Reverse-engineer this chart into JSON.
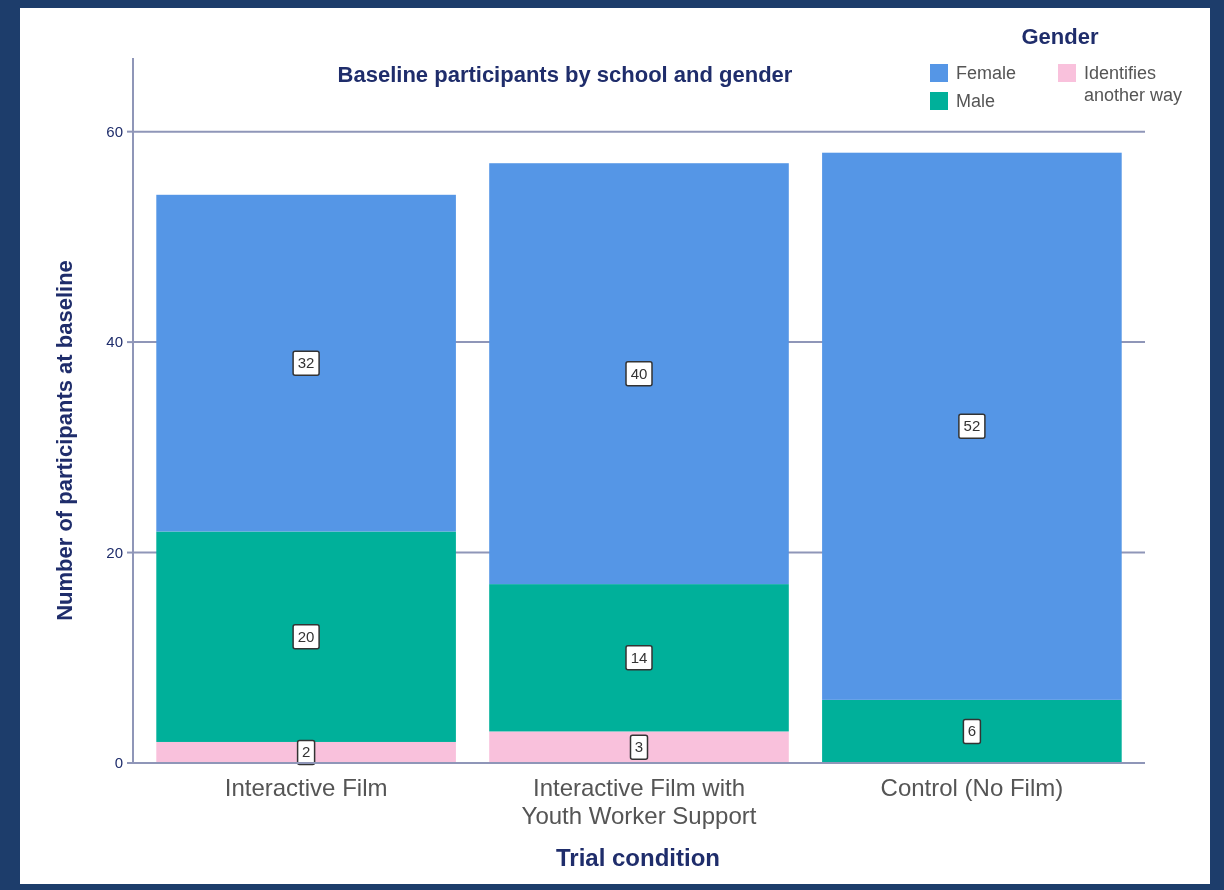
{
  "chart_data": {
    "type": "bar",
    "title": "Baseline participants by school and gender",
    "xlabel": "Trial condition",
    "ylabel": "Number of participants at baseline",
    "legend_title": "Gender",
    "categories": [
      "Interactive Film",
      "Interactive Film with Youth Worker Support",
      "Control (No Film)"
    ],
    "series": [
      {
        "name": "Identifies another way",
        "color": "#f9c1dc",
        "values": [
          2,
          3,
          null
        ]
      },
      {
        "name": "Male",
        "color": "#00b09a",
        "values": [
          20,
          14,
          6
        ]
      },
      {
        "name": "Female",
        "color": "#5596e6",
        "values": [
          32,
          40,
          52
        ]
      }
    ],
    "stacked": true,
    "data_labels": true,
    "ylim": [
      0,
      67
    ],
    "yticks": [
      0,
      20,
      40,
      60
    ],
    "grid": "y",
    "legend": "top right"
  }
}
